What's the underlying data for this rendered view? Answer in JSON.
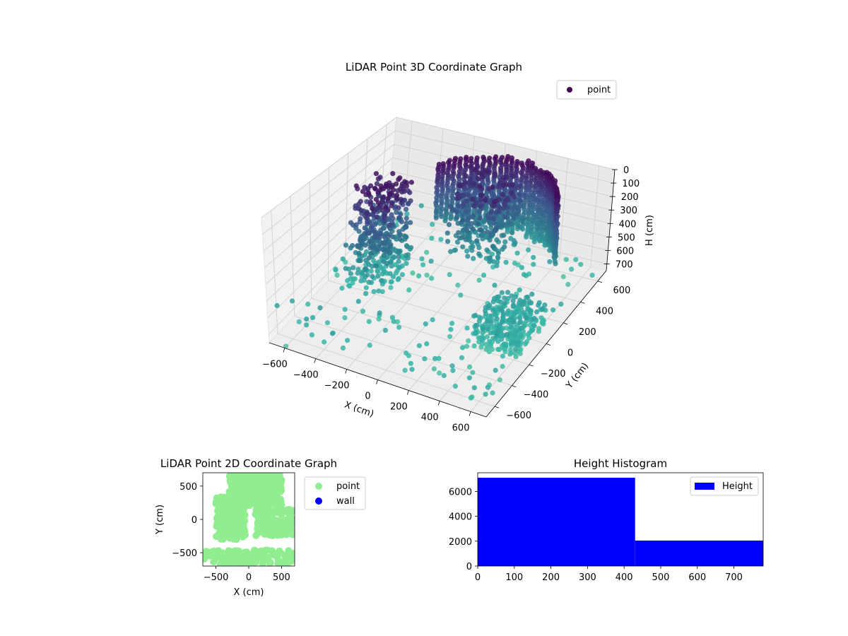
{
  "colors": {
    "viridis_dark": "#440154",
    "viridis_mid": "#3b528b",
    "viridis_teal": "#2c7f8e",
    "viridis_cyan": "#35b5a8",
    "light_green": "#90ee90",
    "blue": "#0000ff",
    "pane": "#f2f2f2",
    "grid": "#d0d0d0"
  },
  "chart_data": [
    {
      "type": "scatter",
      "projection": "3d",
      "title": "LiDAR Point 3D Coordinate Graph",
      "xlabel": "X (cm)",
      "ylabel": "Y (cm)",
      "zlabel": "H (cm)",
      "xlim": [
        -700,
        700
      ],
      "ylim": [
        -700,
        700
      ],
      "zlim": [
        0,
        750
      ],
      "z_inverted": true,
      "colormap": "viridis",
      "color_by": "H",
      "x_ticks": [
        "−600",
        "−400",
        "−200",
        "0",
        "200",
        "400",
        "600"
      ],
      "y_ticks": [
        "−600",
        "−400",
        "−200",
        "0",
        "200",
        "400",
        "600"
      ],
      "z_ticks": [
        "0",
        "100",
        "200",
        "300",
        "400",
        "500",
        "600",
        "700"
      ],
      "legend": {
        "entries": [
          "point"
        ],
        "placement": "upper-right"
      },
      "grid": true,
      "clusters": [
        {
          "name": "back-wall-arc",
          "x_range": [
            -300,
            600
          ],
          "y_range": [
            300,
            650
          ],
          "h_range": [
            0,
            550
          ]
        },
        {
          "name": "left-column",
          "x_range": [
            -600,
            -200
          ],
          "y_range": [
            -200,
            300
          ],
          "h_range": [
            0,
            700
          ]
        },
        {
          "name": "floor-patch-right",
          "x_range": [
            300,
            650
          ],
          "y_range": [
            -300,
            200
          ],
          "h_range": [
            550,
            750
          ]
        },
        {
          "name": "scatter-floor",
          "x_range": [
            -700,
            700
          ],
          "y_range": [
            -700,
            700
          ],
          "h_range": [
            600,
            750
          ]
        }
      ]
    },
    {
      "type": "scatter",
      "title": "LiDAR Point 2D Coordinate Graph",
      "xlabel": "X (cm)",
      "ylabel": "Y (cm)",
      "xlim": [
        -700,
        700
      ],
      "ylim": [
        -700,
        700
      ],
      "x_ticks": [
        "−500",
        "0",
        "500"
      ],
      "y_ticks": [
        "−500",
        "0",
        "500"
      ],
      "series": [
        {
          "name": "point",
          "color": "#90ee90"
        },
        {
          "name": "wall",
          "color": "#0000ff"
        }
      ],
      "legend": {
        "entries": [
          "point",
          "wall"
        ],
        "placement": "outside-right"
      },
      "grid": false
    },
    {
      "type": "bar",
      "title": "Height Histogram",
      "xlabel": "",
      "ylabel": "",
      "xlim": [
        0,
        780
      ],
      "ylim": [
        0,
        7500
      ],
      "bins": [
        {
          "from": 0,
          "to": 430,
          "count": 7100
        },
        {
          "from": 430,
          "to": 780,
          "count": 2050
        }
      ],
      "x_ticks": [
        "0",
        "100",
        "200",
        "300",
        "400",
        "500",
        "600",
        "700"
      ],
      "y_ticks": [
        "0",
        "2000",
        "4000",
        "6000"
      ],
      "series": [
        {
          "name": "Height",
          "color": "#0000ff"
        }
      ],
      "legend": {
        "entries": [
          "Height"
        ],
        "placement": "upper-right"
      },
      "grid": false
    }
  ]
}
